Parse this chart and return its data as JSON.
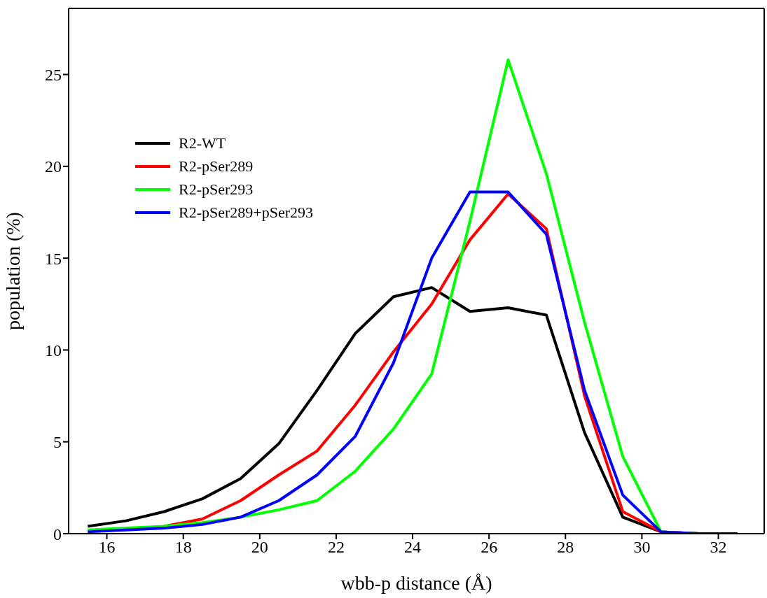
{
  "chart_data": {
    "type": "line",
    "xlabel": "wbb-p distance (Å)",
    "ylabel": "population (%)",
    "x": [
      15.5,
      16.5,
      17.5,
      18.5,
      19.5,
      20.5,
      21.5,
      22.5,
      23.5,
      24.5,
      25.5,
      26.5,
      27.5,
      28.5,
      29.5,
      30.5,
      31.5,
      32.5
    ],
    "series": [
      {
        "name": "R2-WT",
        "color": "#000000",
        "values": [
          0.4,
          0.7,
          1.2,
          1.9,
          3.0,
          4.9,
          7.8,
          10.9,
          12.9,
          13.4,
          12.1,
          12.3,
          11.9,
          5.5,
          0.9,
          0.1,
          0,
          0
        ]
      },
      {
        "name": "R2-pSer289",
        "color": "#ff0000",
        "values": [
          null,
          null,
          0.4,
          0.8,
          1.8,
          3.2,
          4.5,
          7.0,
          9.9,
          12.5,
          16.0,
          18.5,
          16.6,
          7.5,
          1.2,
          0.1,
          0,
          0
        ]
      },
      {
        "name": "R2-pSer293",
        "color": "#00ff00",
        "values": [
          0.2,
          0.3,
          0.4,
          0.6,
          0.9,
          1.3,
          1.8,
          3.4,
          5.7,
          8.7,
          17.0,
          25.8,
          19.6,
          11.5,
          4.2,
          0.1,
          0,
          0
        ]
      },
      {
        "name": "R2-pSer289+pSer293",
        "color": "#0000ff",
        "values": [
          0.1,
          0.2,
          0.3,
          0.5,
          0.9,
          1.8,
          3.2,
          5.3,
          9.3,
          15.0,
          18.6,
          18.6,
          16.3,
          7.8,
          2.1,
          0.1,
          0,
          0
        ]
      }
    ],
    "xlim": [
      15,
      33.2
    ],
    "xticks": [
      16,
      18,
      20,
      22,
      24,
      26,
      28,
      30,
      32
    ],
    "ylim": [
      0,
      28.6
    ],
    "yticks": [
      0,
      5,
      10,
      15,
      20,
      25
    ],
    "grid": false,
    "legend": "top left",
    "marker": "none",
    "line_style": "solid"
  }
}
